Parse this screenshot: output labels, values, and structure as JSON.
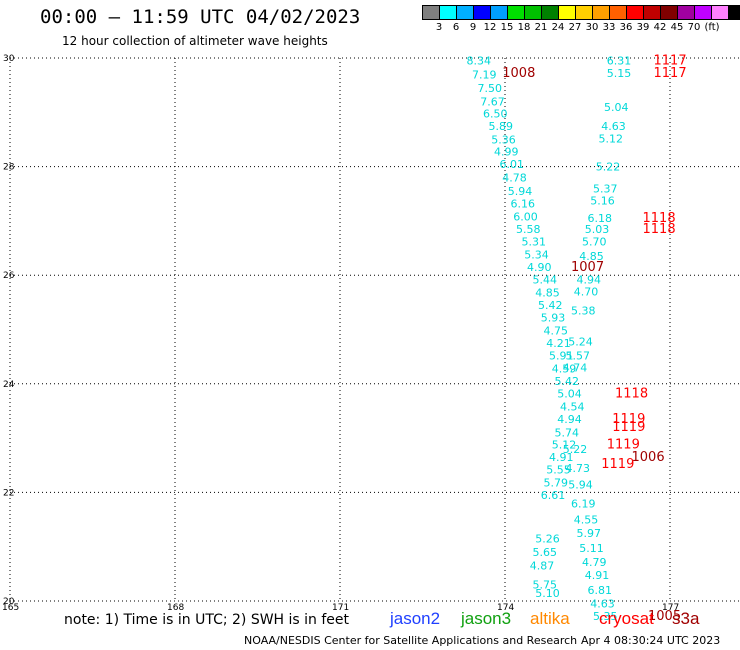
{
  "title": "00:00 – 11:59 UTC 04/02/2023",
  "subtitle": "12 hour collection of altimeter wave heights",
  "colorbar": {
    "unit": "(ft)",
    "colors": [
      "#7f7f7f",
      "#00ffff",
      "#00b0ff",
      "#0000ff",
      "#00a0ff",
      "#00e000",
      "#00c000",
      "#008000",
      "#ffff00",
      "#ffd000",
      "#ffa000",
      "#ff6000",
      "#ff0000",
      "#c00000",
      "#800000",
      "#a000a0",
      "#c000ff",
      "#ff80ff",
      "#000000"
    ],
    "labels": [
      "3",
      "6",
      "9",
      "12",
      "15",
      "18",
      "21",
      "24",
      "27",
      "30",
      "33",
      "36",
      "39",
      "42",
      "45",
      "70"
    ]
  },
  "chart_data": {
    "type": "scatter",
    "xlim": [
      165,
      179
    ],
    "ylim": [
      20,
      30
    ],
    "x_ticks": [
      "165",
      "168",
      "171",
      "174",
      "177"
    ],
    "y_ticks": [
      "20",
      "22",
      "24",
      "26",
      "28",
      "30"
    ],
    "grid": true,
    "series": [
      {
        "name": "cryosat",
        "color": "#00d8d8",
        "points": [
          {
            "x": 173.3,
            "y": 29.95,
            "label": "8.34"
          },
          {
            "x": 173.4,
            "y": 29.7,
            "label": "7.19"
          },
          {
            "x": 173.5,
            "y": 29.45,
            "label": "7.50"
          },
          {
            "x": 173.55,
            "y": 29.2,
            "label": "7.67"
          },
          {
            "x": 173.6,
            "y": 28.98,
            "label": "6.50"
          },
          {
            "x": 173.7,
            "y": 28.75,
            "label": "5.89"
          },
          {
            "x": 173.75,
            "y": 28.5,
            "label": "5.36"
          },
          {
            "x": 173.8,
            "y": 28.28,
            "label": "4.99"
          },
          {
            "x": 173.9,
            "y": 28.05,
            "label": "6.01"
          },
          {
            "x": 173.95,
            "y": 27.8,
            "label": "4.78"
          },
          {
            "x": 174.05,
            "y": 27.55,
            "label": "5.94"
          },
          {
            "x": 174.1,
            "y": 27.32,
            "label": "6.16"
          },
          {
            "x": 174.15,
            "y": 27.08,
            "label": "6.00"
          },
          {
            "x": 174.2,
            "y": 26.85,
            "label": "5.58"
          },
          {
            "x": 174.3,
            "y": 26.62,
            "label": "5.31"
          },
          {
            "x": 174.35,
            "y": 26.38,
            "label": "5.34"
          },
          {
            "x": 174.4,
            "y": 26.15,
            "label": "4.90"
          },
          {
            "x": 174.5,
            "y": 25.92,
            "label": "5.44"
          },
          {
            "x": 174.55,
            "y": 25.68,
            "label": "4.85"
          },
          {
            "x": 174.6,
            "y": 25.45,
            "label": "5.42"
          },
          {
            "x": 174.65,
            "y": 25.22,
            "label": "5.93"
          },
          {
            "x": 174.7,
            "y": 24.98,
            "label": "4.75"
          },
          {
            "x": 174.75,
            "y": 24.75,
            "label": "4.21"
          },
          {
            "x": 174.8,
            "y": 24.52,
            "label": "5.91"
          },
          {
            "x": 174.85,
            "y": 24.28,
            "label": "4.59"
          },
          {
            "x": 174.9,
            "y": 24.05,
            "label": "5.42"
          },
          {
            "x": 174.95,
            "y": 23.82,
            "label": "5.04"
          },
          {
            "x": 175.0,
            "y": 23.58,
            "label": "4.54"
          },
          {
            "x": 174.95,
            "y": 23.35,
            "label": "4.94"
          },
          {
            "x": 174.9,
            "y": 23.1,
            "label": "5.74"
          },
          {
            "x": 174.85,
            "y": 22.88,
            "label": "5.12"
          },
          {
            "x": 174.8,
            "y": 22.65,
            "label": "4.91"
          },
          {
            "x": 174.75,
            "y": 22.42,
            "label": "5.55"
          },
          {
            "x": 174.7,
            "y": 22.18,
            "label": "5.79"
          },
          {
            "x": 174.65,
            "y": 21.95,
            "label": "6.61"
          },
          {
            "x": 174.55,
            "y": 21.15,
            "label": "5.26"
          },
          {
            "x": 174.5,
            "y": 20.9,
            "label": "5.65"
          },
          {
            "x": 174.45,
            "y": 20.65,
            "label": "4.87"
          },
          {
            "x": 174.5,
            "y": 20.3,
            "label": "5.75"
          },
          {
            "x": 174.55,
            "y": 20.15,
            "label": "5.10"
          },
          {
            "x": 175.85,
            "y": 29.95,
            "label": "6.31"
          },
          {
            "x": 175.85,
            "y": 29.72,
            "label": "5.15"
          },
          {
            "x": 175.8,
            "y": 29.1,
            "label": "5.04"
          },
          {
            "x": 175.75,
            "y": 28.75,
            "label": "4.63"
          },
          {
            "x": 175.7,
            "y": 28.52,
            "label": "5.12"
          },
          {
            "x": 175.65,
            "y": 28.0,
            "label": "5.22"
          },
          {
            "x": 175.6,
            "y": 27.6,
            "label": "5.37"
          },
          {
            "x": 175.55,
            "y": 27.38,
            "label": "5.16"
          },
          {
            "x": 175.5,
            "y": 27.05,
            "label": "6.18"
          },
          {
            "x": 175.45,
            "y": 26.85,
            "label": "5.03"
          },
          {
            "x": 175.4,
            "y": 26.62,
            "label": "5.70"
          },
          {
            "x": 175.35,
            "y": 26.35,
            "label": "4.85"
          },
          {
            "x": 175.3,
            "y": 25.92,
            "label": "4.94"
          },
          {
            "x": 175.25,
            "y": 25.7,
            "label": "4.70"
          },
          {
            "x": 175.2,
            "y": 25.35,
            "label": "5.38"
          },
          {
            "x": 175.15,
            "y": 24.78,
            "label": "5.24"
          },
          {
            "x": 175.1,
            "y": 24.52,
            "label": "5.57"
          },
          {
            "x": 175.05,
            "y": 24.3,
            "label": "4.74"
          },
          {
            "x": 175.05,
            "y": 22.8,
            "label": "5.22"
          },
          {
            "x": 175.1,
            "y": 22.45,
            "label": "4.73"
          },
          {
            "x": 175.15,
            "y": 22.15,
            "label": "5.94"
          },
          {
            "x": 175.2,
            "y": 21.8,
            "label": "6.19"
          },
          {
            "x": 175.25,
            "y": 21.5,
            "label": "4.55"
          },
          {
            "x": 175.3,
            "y": 21.25,
            "label": "5.97"
          },
          {
            "x": 175.35,
            "y": 20.98,
            "label": "5.11"
          },
          {
            "x": 175.4,
            "y": 20.72,
            "label": "4.79"
          },
          {
            "x": 175.45,
            "y": 20.48,
            "label": "4.91"
          },
          {
            "x": 175.5,
            "y": 20.2,
            "label": "6.81"
          },
          {
            "x": 175.55,
            "y": 19.95,
            "label": "4.63"
          },
          {
            "x": 175.6,
            "y": 19.72,
            "label": "5.35"
          }
        ]
      },
      {
        "name": "s3a",
        "color": "#a00000",
        "points": [
          {
            "x": 173.95,
            "y": 29.72,
            "label": "1008"
          },
          {
            "x": 175.2,
            "y": 26.15,
            "label": "1007"
          },
          {
            "x": 176.3,
            "y": 22.65,
            "label": "1006"
          },
          {
            "x": 176.6,
            "y": 19.72,
            "label": "1005"
          }
        ]
      },
      {
        "name": "s3a-red",
        "color": "#ff0000",
        "points": [
          {
            "x": 176.7,
            "y": 29.95,
            "label": "1117"
          },
          {
            "x": 176.7,
            "y": 29.72,
            "label": "1117"
          },
          {
            "x": 176.5,
            "y": 27.05,
            "label": "1118"
          },
          {
            "x": 176.5,
            "y": 26.85,
            "label": "1118"
          },
          {
            "x": 176.0,
            "y": 23.82,
            "label": "1118"
          },
          {
            "x": 175.95,
            "y": 23.35,
            "label": "1119"
          },
          {
            "x": 175.95,
            "y": 23.2,
            "label": "1119"
          },
          {
            "x": 175.85,
            "y": 22.88,
            "label": "1119"
          },
          {
            "x": 175.75,
            "y": 22.52,
            "label": "1119"
          }
        ]
      }
    ]
  },
  "note": "note:  1) Time is in UTC; 2) SWH is in feet",
  "satellites": [
    {
      "name": "jason2",
      "color": "#2040ff"
    },
    {
      "name": "jason3",
      "color": "#10a010"
    },
    {
      "name": "altika",
      "color": "#ff8800"
    },
    {
      "name": "cryosat",
      "color": "#ff0000"
    },
    {
      "name": "s3a",
      "color": "#a00000"
    }
  ],
  "credit": "NOAA/NESDIS Center for Satellite Applications and Research",
  "timestamp": "Apr  4 08:30:24 UTC 2023"
}
